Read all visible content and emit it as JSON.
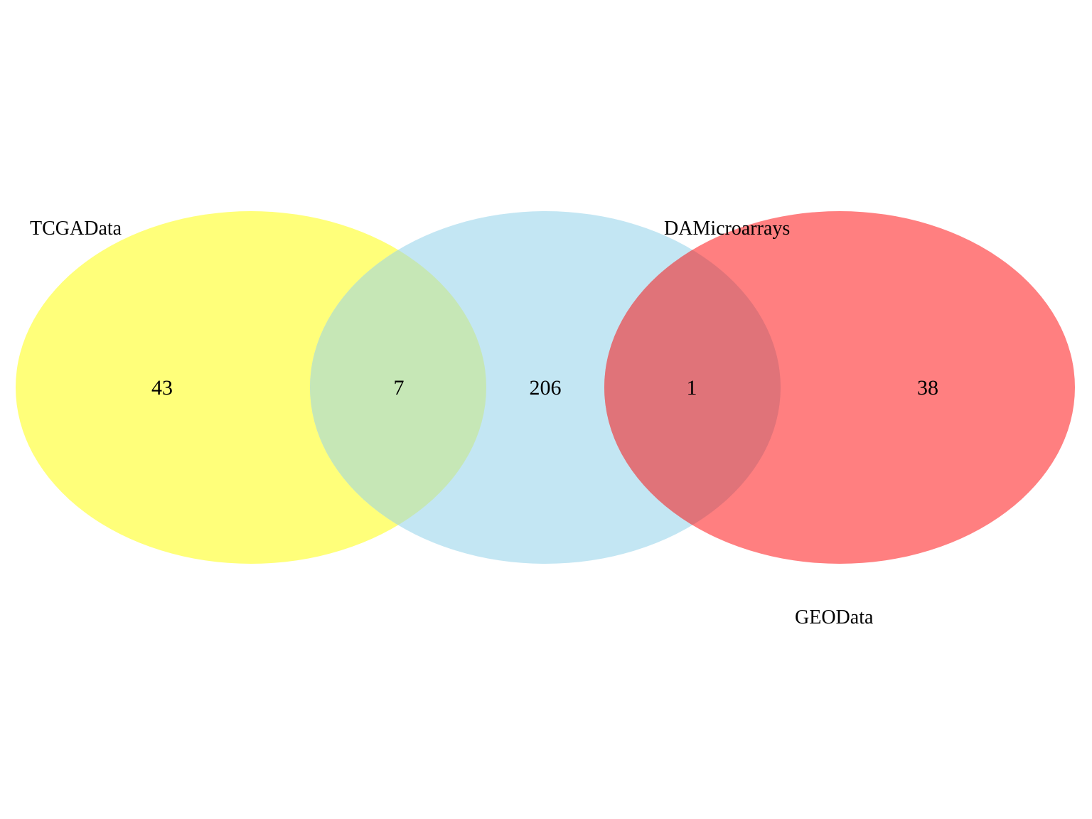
{
  "diagram": {
    "type": "venn",
    "sets": [
      {
        "name": "TCGAData",
        "color": "#ffff7a"
      },
      {
        "name": "DAMicroarrays",
        "color": "#c3e6f3"
      },
      {
        "name": "GEOData",
        "color": "#ff7f80"
      }
    ],
    "regions": [
      {
        "sets": [
          "TCGAData"
        ],
        "count": "43"
      },
      {
        "sets": [
          "TCGAData",
          "DAMicroarrays"
        ],
        "count": "7"
      },
      {
        "sets": [
          "DAMicroarrays"
        ],
        "count": "206"
      },
      {
        "sets": [
          "DAMicroarrays",
          "GEOData"
        ],
        "count": "1"
      },
      {
        "sets": [
          "GEOData"
        ],
        "count": "38"
      }
    ],
    "overlap_colors": {
      "TCGAData&DAMicroarrays": "#c6e7b6",
      "DAMicroarrays&GEOData": "#e07379"
    }
  }
}
